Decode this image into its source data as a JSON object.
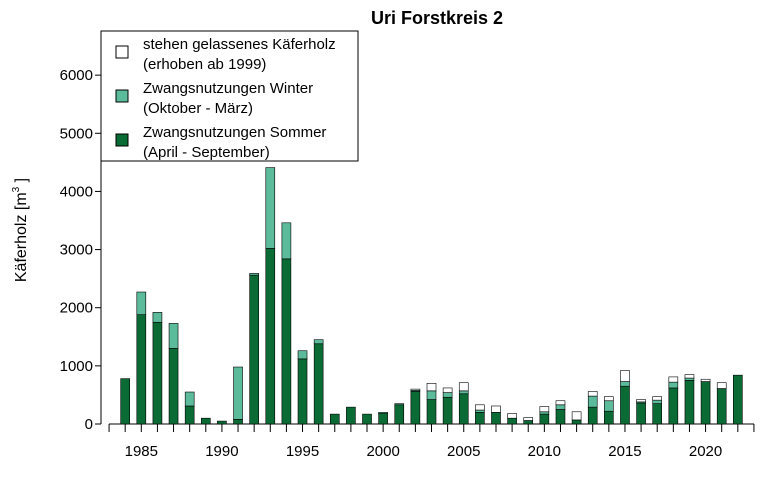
{
  "chart_data": {
    "type": "bar",
    "stacked": true,
    "title": "Uri Forstkreis 2",
    "ylabel": "Käferholz [m",
    "ylabel_sup": "3",
    "ylabel_end": " ]",
    "ylim": [
      0,
      7000
    ],
    "xlim": [
      1982.5,
      2023.5
    ],
    "y_ticks": [
      0,
      1000,
      2000,
      3000,
      4000,
      5000,
      6000
    ],
    "x_tick_labels": [
      1985,
      1990,
      1995,
      2000,
      2005,
      2010,
      2015,
      2020
    ],
    "legend_position": "top-left",
    "years": [
      1984,
      1985,
      1986,
      1987,
      1988,
      1989,
      1990,
      1991,
      1992,
      1993,
      1994,
      1995,
      1996,
      1997,
      1998,
      1999,
      2000,
      2001,
      2002,
      2003,
      2004,
      2005,
      2006,
      2007,
      2008,
      2009,
      2010,
      2011,
      2012,
      2013,
      2014,
      2015,
      2016,
      2017,
      2018,
      2019,
      2020,
      2021,
      2022
    ],
    "series": [
      {
        "key": "sommer",
        "line1": "Zwangsnutzungen Sommer",
        "line2": "(April - September)",
        "color": "#0b6b35",
        "values": [
          780,
          1880,
          1750,
          1300,
          310,
          100,
          50,
          80,
          2560,
          3020,
          2840,
          1120,
          1380,
          170,
          290,
          170,
          180,
          330,
          560,
          420,
          460,
          520,
          200,
          200,
          100,
          60,
          170,
          250,
          70,
          290,
          220,
          650,
          360,
          350,
          620,
          750,
          730,
          610,
          840
        ]
      },
      {
        "key": "winter",
        "line1": "Zwangsnutzungen Winter",
        "line2": "(Oktober - März)",
        "color": "#5cbb9b",
        "values": [
          0,
          390,
          170,
          430,
          240,
          0,
          0,
          900,
          30,
          1390,
          620,
          140,
          70,
          0,
          0,
          0,
          20,
          20,
          20,
          150,
          80,
          50,
          40,
          0,
          0,
          0,
          40,
          80,
          0,
          190,
          180,
          80,
          20,
          60,
          100,
          40,
          0,
          0,
          0
        ]
      },
      {
        "key": "stehen",
        "line1": "stehen gelassenes Käferholz",
        "line2": "(erhoben ab 1999)",
        "color": "#ffffff",
        "values": [
          0,
          0,
          0,
          0,
          0,
          0,
          0,
          0,
          0,
          0,
          0,
          0,
          0,
          0,
          0,
          0,
          0,
          0,
          20,
          130,
          80,
          140,
          90,
          110,
          80,
          50,
          90,
          70,
          140,
          80,
          70,
          190,
          40,
          60,
          90,
          60,
          40,
          100,
          0
        ]
      }
    ]
  }
}
